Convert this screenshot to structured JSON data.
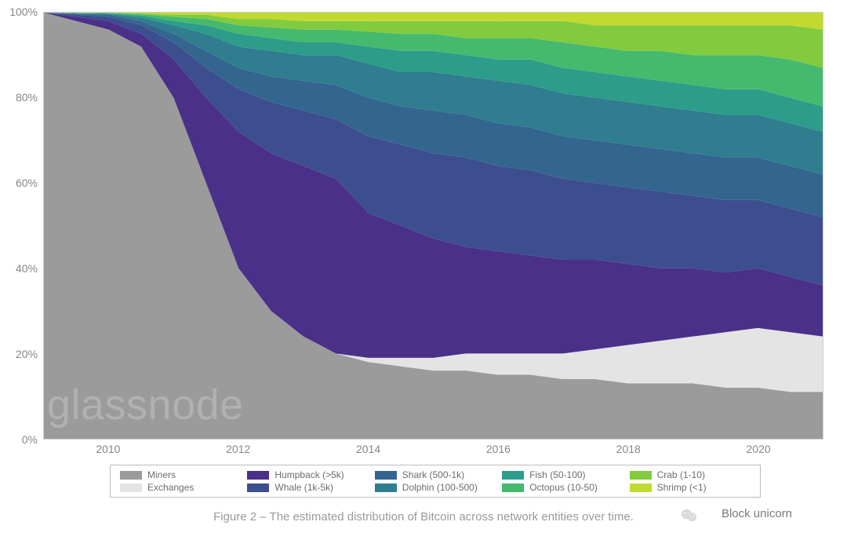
{
  "chart": {
    "type": "stacked-area-100pct",
    "x_axis": {
      "ticks": [
        2010,
        2012,
        2014,
        2016,
        2018,
        2020
      ],
      "range": [
        2009,
        2021
      ],
      "label_fontsize": 14,
      "label_color": "#868686"
    },
    "y_axis": {
      "ticks": [
        "0%",
        "20%",
        "40%",
        "60%",
        "80%",
        "100%"
      ],
      "range_pct": [
        0,
        100
      ],
      "label_fontsize": 14,
      "label_color": "#868686"
    },
    "grid_color": "#e6e6e6",
    "border_color": "#cfcfcf",
    "background_color": "#ffffff",
    "watermark": "glassnode",
    "watermark_color": "#b3b3b3",
    "watermark_fontsize": 54,
    "series_order_bottom_to_top": [
      "miners",
      "exchanges",
      "humpback",
      "whale",
      "shark",
      "dolphin",
      "fish",
      "octopus",
      "crab",
      "shrimp"
    ],
    "series": {
      "miners": {
        "label": "Miners",
        "color": "#9b9b9b"
      },
      "exchanges": {
        "label": "Exchanges",
        "color": "#e4e4e4"
      },
      "humpback": {
        "label": "Humpback (>5k)",
        "color": "#4a3088"
      },
      "whale": {
        "label": "Whale (1k-5k)",
        "color": "#3d4e8e"
      },
      "shark": {
        "label": "Shark (500-1k)",
        "color": "#33658f"
      },
      "dolphin": {
        "label": "Dolphin (100-500)",
        "color": "#2f7d8f"
      },
      "fish": {
        "label": "Fish (50-100)",
        "color": "#2d9c8a"
      },
      "octopus": {
        "label": "Octopus (10-50)",
        "color": "#45b96e"
      },
      "crab": {
        "label": "Crab (1-10)",
        "color": "#82cb3f"
      },
      "shrimp": {
        "label": "Shrimp (<1)",
        "color": "#c2d932"
      }
    },
    "samples_x_years": [
      2009.0,
      2009.5,
      2010.0,
      2010.5,
      2011.0,
      2011.5,
      2012.0,
      2012.5,
      2013.0,
      2013.5,
      2014.0,
      2014.5,
      2015.0,
      2015.5,
      2016.0,
      2016.5,
      2017.0,
      2017.5,
      2018.0,
      2018.5,
      2019.0,
      2019.5,
      2020.0,
      2020.5,
      2021.0
    ],
    "shares_pct": {
      "miners": [
        100,
        98,
        96,
        92,
        80,
        60,
        40,
        30,
        24,
        20,
        18,
        17,
        16,
        16,
        15,
        15,
        14,
        14,
        13,
        13,
        13,
        12,
        12,
        11,
        11
      ],
      "exchanges": [
        0,
        0,
        0,
        0,
        0,
        0,
        0,
        0,
        0,
        0,
        1,
        2,
        3,
        4,
        5,
        5,
        6,
        7,
        9,
        10,
        11,
        13,
        14,
        14,
        13
      ],
      "humpback": [
        0,
        1,
        2,
        3,
        9,
        20,
        32,
        37,
        40,
        41,
        34,
        31,
        28,
        25,
        24,
        23,
        22,
        21,
        19,
        17,
        16,
        14,
        14,
        13,
        12
      ],
      "whale": [
        0,
        0.5,
        1,
        2,
        4,
        7,
        10,
        12,
        13,
        14,
        18,
        19,
        20,
        21,
        20,
        20,
        19,
        18,
        18,
        18,
        17,
        17,
        16,
        16,
        16
      ],
      "shark": [
        0,
        0.2,
        0.5,
        1,
        2,
        4,
        5,
        6,
        7,
        8,
        9,
        9,
        10,
        10,
        10,
        10,
        10,
        10,
        10,
        10,
        10,
        10,
        10,
        10,
        10
      ],
      "dolphin": [
        0,
        0.1,
        0.2,
        0.8,
        2,
        4,
        5,
        6,
        6,
        7,
        8,
        8,
        9,
        9,
        10,
        10,
        10,
        10,
        10,
        10,
        10,
        10,
        10,
        10,
        10
      ],
      "fish": [
        0,
        0.1,
        0.1,
        0.5,
        1,
        2,
        3,
        3,
        3,
        3,
        4,
        5,
        5,
        5,
        5,
        6,
        6,
        6,
        6,
        6,
        6,
        6,
        6,
        6,
        6
      ],
      "octopus": [
        0,
        0.05,
        0.1,
        0.3,
        1,
        1.5,
        2,
        2.5,
        3,
        3,
        3.5,
        4,
        4,
        4,
        5,
        5,
        6,
        6,
        6,
        7,
        7,
        8,
        8,
        9,
        9
      ],
      "crab": [
        0,
        0.03,
        0.07,
        0.2,
        0.5,
        1,
        1.5,
        2,
        2,
        2,
        2.5,
        3,
        3,
        4,
        4,
        4,
        5,
        5,
        6,
        6,
        7,
        7,
        7,
        8,
        9
      ],
      "shrimp": [
        0,
        0.02,
        0.03,
        0.2,
        0.5,
        0.5,
        1.5,
        1.5,
        2,
        2,
        2,
        2,
        2,
        2,
        2,
        2,
        2,
        3,
        3,
        3,
        3,
        3,
        3,
        3,
        4
      ]
    }
  },
  "legend": {
    "border_color": "#bcbcbc",
    "fontsize": 12,
    "text_color": "#6c6c6c",
    "rows": [
      [
        "miners",
        "humpback",
        "shark",
        "fish",
        "crab"
      ],
      [
        "exchanges",
        "whale",
        "dolphin",
        "octopus",
        "shrimp"
      ]
    ]
  },
  "caption": {
    "text": "Figure 2 – The estimated distribution of Bitcoin across network entities over time.",
    "fontsize": 15,
    "color": "#9a9a9a"
  },
  "attribution": {
    "text": "Block unicorn",
    "fontsize": 15
  }
}
